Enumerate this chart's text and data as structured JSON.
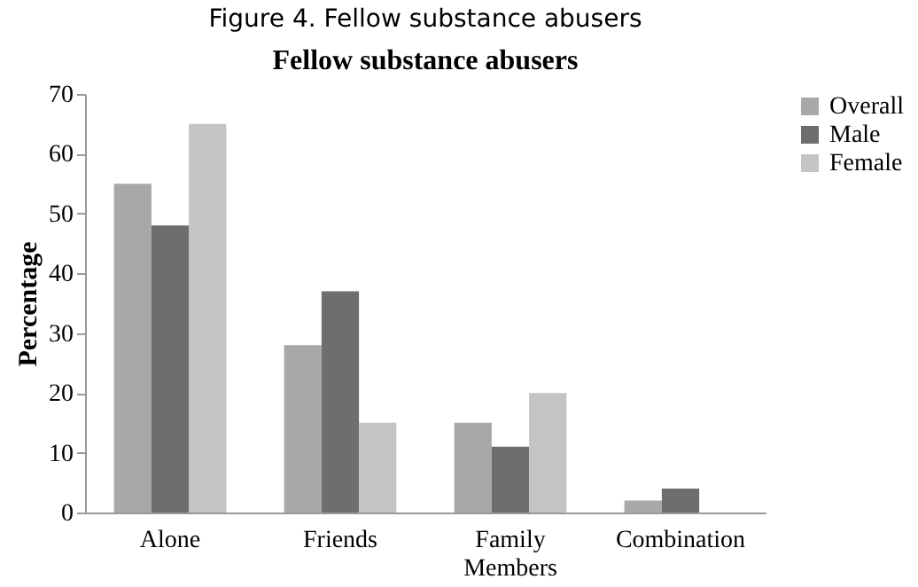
{
  "chart_data": {
    "type": "bar",
    "title": "Figure 4. Fellow substance abusers",
    "subtitle": "Fellow substance abusers",
    "ylabel": "Percentage",
    "categories": [
      "Alone",
      "Friends",
      "Family Members",
      "Combination"
    ],
    "series": [
      {
        "name": "Overall",
        "color": "#a8a8a8",
        "values": [
          55,
          28,
          15,
          2
        ]
      },
      {
        "name": "Male",
        "color": "#6e6e6e",
        "values": [
          48,
          37,
          11,
          4
        ]
      },
      {
        "name": "Female",
        "color": "#c4c4c4",
        "values": [
          65,
          15,
          20,
          0
        ]
      }
    ],
    "ylim": [
      0,
      70
    ],
    "yticks": [
      0,
      10,
      20,
      30,
      40,
      50,
      60,
      70
    ],
    "grid": false,
    "legend": "right"
  }
}
